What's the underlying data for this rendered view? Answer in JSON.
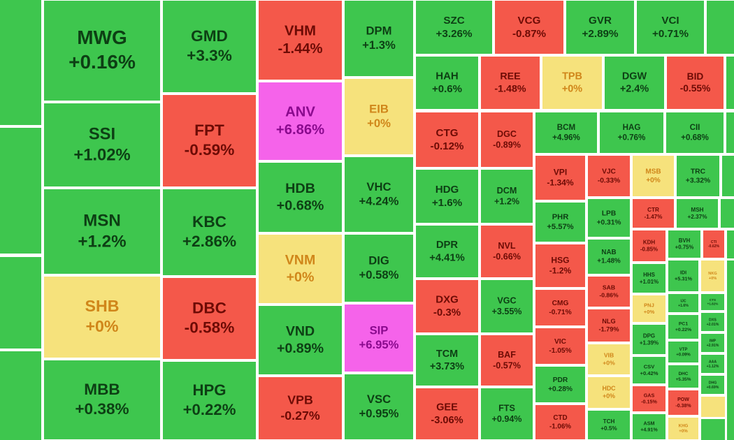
{
  "tiles": [
    {
      "ticker": "MWG",
      "change": "+0.16%",
      "color": "#3ec64e"
    },
    {
      "ticker": "SSI",
      "change": "+1.02%",
      "color": "#3ec64e"
    },
    {
      "ticker": "MSN",
      "change": "+1.2%",
      "color": "#3ec64e"
    },
    {
      "ticker": "SHB",
      "change": "+0%",
      "color": "#f6e27c"
    },
    {
      "ticker": "MBB",
      "change": "+0.38%",
      "color": "#3ec64e"
    },
    {
      "ticker": "GMD",
      "change": "+3.3%",
      "color": "#3ec64e"
    },
    {
      "ticker": "FPT",
      "change": "-0.59%",
      "color": "#f4584a"
    },
    {
      "ticker": "KBC",
      "change": "+2.86%",
      "color": "#3ec64e"
    },
    {
      "ticker": "DBC",
      "change": "-0.58%",
      "color": "#f4584a"
    },
    {
      "ticker": "HPG",
      "change": "+0.22%",
      "color": "#3ec64e"
    },
    {
      "ticker": "VHM",
      "change": "-1.44%",
      "color": "#f4584a"
    },
    {
      "ticker": "ANV",
      "change": "+6.86%",
      "color": "#f563ea"
    },
    {
      "ticker": "HDB",
      "change": "+0.68%",
      "color": "#3ec64e"
    },
    {
      "ticker": "VNM",
      "change": "+0%",
      "color": "#f6e27c"
    },
    {
      "ticker": "VND",
      "change": "+0.89%",
      "color": "#3ec64e"
    },
    {
      "ticker": "VPB",
      "change": "-0.27%",
      "color": "#f4584a"
    },
    {
      "ticker": "DPM",
      "change": "+1.3%",
      "color": "#3ec64e"
    },
    {
      "ticker": "EIB",
      "change": "+0%",
      "color": "#f6e27c"
    },
    {
      "ticker": "VHC",
      "change": "+4.24%",
      "color": "#3ec64e"
    },
    {
      "ticker": "DIG",
      "change": "+0.58%",
      "color": "#3ec64e"
    },
    {
      "ticker": "SIP",
      "change": "+6.95%",
      "color": "#f563ea"
    },
    {
      "ticker": "VSC",
      "change": "+0.95%",
      "color": "#3ec64e"
    },
    {
      "ticker": "SZC",
      "change": "+3.26%",
      "color": "#3ec64e"
    },
    {
      "ticker": "VCG",
      "change": "-0.87%",
      "color": "#f4584a"
    },
    {
      "ticker": "GVR",
      "change": "+2.89%",
      "color": "#3ec64e"
    },
    {
      "ticker": "VCI",
      "change": "+0.71%",
      "color": "#3ec64e"
    },
    {
      "ticker": "HAH",
      "change": "+0.6%",
      "color": "#3ec64e"
    },
    {
      "ticker": "REE",
      "change": "-1.48%",
      "color": "#f4584a"
    },
    {
      "ticker": "TPB",
      "change": "+0%",
      "color": "#f6e27c"
    },
    {
      "ticker": "DGW",
      "change": "+2.4%",
      "color": "#3ec64e"
    },
    {
      "ticker": "BID",
      "change": "-0.55%",
      "color": "#f4584a"
    },
    {
      "ticker": "CTG",
      "change": "-0.12%",
      "color": "#f4584a"
    },
    {
      "ticker": "HDG",
      "change": "+1.6%",
      "color": "#3ec64e"
    },
    {
      "ticker": "DPR",
      "change": "+4.41%",
      "color": "#3ec64e"
    },
    {
      "ticker": "DXG",
      "change": "-0.3%",
      "color": "#f4584a"
    },
    {
      "ticker": "TCM",
      "change": "+3.73%",
      "color": "#3ec64e"
    },
    {
      "ticker": "GEE",
      "change": "-3.06%",
      "color": "#f4584a"
    },
    {
      "ticker": "DGC",
      "change": "-0.89%",
      "color": "#f4584a"
    },
    {
      "ticker": "DCM",
      "change": "+1.2%",
      "color": "#3ec64e"
    },
    {
      "ticker": "NVL",
      "change": "-0.66%",
      "color": "#f4584a"
    },
    {
      "ticker": "VGC",
      "change": "+3.55%",
      "color": "#3ec64e"
    },
    {
      "ticker": "BAF",
      "change": "-0.57%",
      "color": "#f4584a"
    },
    {
      "ticker": "FTS",
      "change": "+0.94%",
      "color": "#3ec64e"
    },
    {
      "ticker": "BCM",
      "change": "+4.96%",
      "color": "#3ec64e"
    },
    {
      "ticker": "HAG",
      "change": "+0.76%",
      "color": "#3ec64e"
    },
    {
      "ticker": "CII",
      "change": "+0.68%",
      "color": "#3ec64e"
    },
    {
      "ticker": "VPI",
      "change": "-1.34%",
      "color": "#f4584a"
    },
    {
      "ticker": "PHR",
      "change": "+5.57%",
      "color": "#3ec64e"
    },
    {
      "ticker": "HSG",
      "change": "-1.2%",
      "color": "#f4584a"
    },
    {
      "ticker": "CMG",
      "change": "-0.71%",
      "color": "#f4584a"
    },
    {
      "ticker": "VIC",
      "change": "-1.05%",
      "color": "#f4584a"
    },
    {
      "ticker": "PDR",
      "change": "+0.28%",
      "color": "#3ec64e"
    },
    {
      "ticker": "CTD",
      "change": "-1.06%",
      "color": "#f4584a"
    },
    {
      "ticker": "VJC",
      "change": "-0.33%",
      "color": "#f4584a"
    },
    {
      "ticker": "LPB",
      "change": "+0.31%",
      "color": "#3ec64e"
    },
    {
      "ticker": "NAB",
      "change": "+1.48%",
      "color": "#3ec64e"
    },
    {
      "ticker": "SAB",
      "change": "-0.86%",
      "color": "#f4584a"
    },
    {
      "ticker": "NLG",
      "change": "-1.79%",
      "color": "#f4584a"
    },
    {
      "ticker": "VIB",
      "change": "+0%",
      "color": "#f6e27c"
    },
    {
      "ticker": "HDC",
      "change": "+0%",
      "color": "#f6e27c"
    },
    {
      "ticker": "TCH",
      "change": "+0.5%",
      "color": "#3ec64e"
    },
    {
      "ticker": "MSB",
      "change": "+0%",
      "color": "#f6e27c"
    },
    {
      "ticker": "TRC",
      "change": "+3.32%",
      "color": "#3ec64e"
    },
    {
      "ticker": "CTR",
      "change": "-1.47%",
      "color": "#f4584a"
    },
    {
      "ticker": "MSH",
      "change": "+2.37%",
      "color": "#3ec64e"
    },
    {
      "ticker": "KDH",
      "change": "-0.85%",
      "color": "#f4584a"
    },
    {
      "ticker": "HHS",
      "change": "+1.01%",
      "color": "#3ec64e"
    },
    {
      "ticker": "PNJ",
      "change": "+0%",
      "color": "#f6e27c"
    },
    {
      "ticker": "DPG",
      "change": "+1.39%",
      "color": "#3ec64e"
    },
    {
      "ticker": "CSV",
      "change": "+0.42%",
      "color": "#3ec64e"
    },
    {
      "ticker": "GAS",
      "change": "-0.15%",
      "color": "#f4584a"
    },
    {
      "ticker": "ASM",
      "change": "+4.91%",
      "color": "#3ec64e"
    },
    {
      "ticker": "BVH",
      "change": "+0.75%",
      "color": "#3ec64e"
    },
    {
      "ticker": "CTI",
      "change": "-0.62%",
      "color": "#f4584a"
    },
    {
      "ticker": "IDI",
      "change": "+5.31%",
      "color": "#3ec64e"
    },
    {
      "ticker": "NKG",
      "change": "+0%",
      "color": "#f6e27c"
    },
    {
      "ticker": "IJC",
      "change": "+1.6%",
      "color": "#3ec64e"
    },
    {
      "ticker": "CTS",
      "change": "+1.82%",
      "color": "#3ec64e"
    },
    {
      "ticker": "PC1",
      "change": "+0.22%",
      "color": "#3ec64e"
    },
    {
      "ticker": "DXS",
      "change": "+2.01%",
      "color": "#3ec64e"
    },
    {
      "ticker": "VTP",
      "change": "+0.09%",
      "color": "#3ec64e"
    },
    {
      "ticker": "IMP",
      "change": "+2.91%",
      "color": "#3ec64e"
    },
    {
      "ticker": "DHC",
      "change": "+5.35%",
      "color": "#3ec64e"
    },
    {
      "ticker": "AAA",
      "change": "+1.12%",
      "color": "#3ec64e"
    },
    {
      "ticker": "POW",
      "change": "-0.38%",
      "color": "#f4584a"
    },
    {
      "ticker": "DHG",
      "change": "+0.69%",
      "color": "#3ec64e"
    },
    {
      "ticker": "KHG",
      "change": "+0%",
      "color": "#f6e27c"
    }
  ]
}
